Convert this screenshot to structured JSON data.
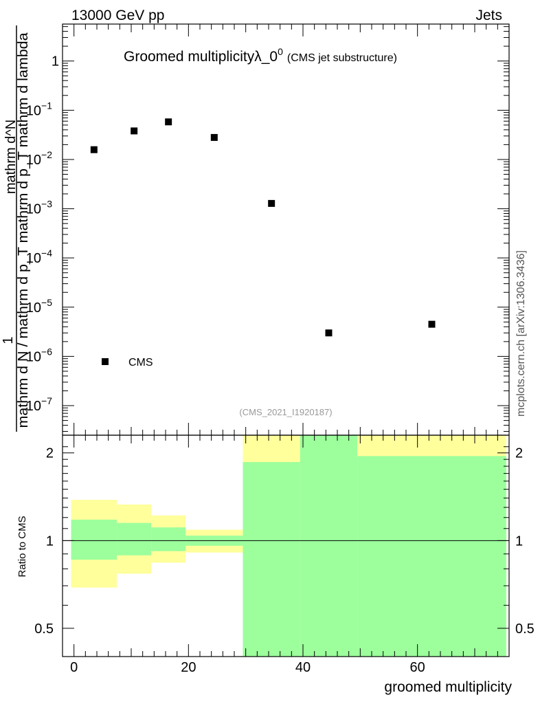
{
  "header": {
    "left": "13000 GeV pp",
    "right": "Jets"
  },
  "side_label": "mcplots.cern.ch [arXiv:1306.3436]",
  "chart_data": {
    "type": "scatter",
    "title": "Groomed multiplicityλ_0",
    "title_sup": "0",
    "subtitle": "(CMS jet substructure)",
    "analysis_id": "(CMS_2021_I1920187)",
    "xlabel": "groomed multiplicity",
    "ylabel_main_top": "mathrm d^N",
    "ylabel_main_bottom": "mathrm d N / mathrm d p_T mathrm d p_T mathrm d lambda",
    "ylabel_main_num": "1",
    "ylabel_ratio": "Ratio to CMS",
    "xlim": [
      -2,
      76
    ],
    "ylim_main_log10": [
      -7.6,
      0.75
    ],
    "ylim_ratio": [
      0.4,
      2.3
    ],
    "y_scale_main": "log",
    "y_scale_ratio": "log",
    "x_ticks": [
      "0",
      "20",
      "40",
      "60"
    ],
    "y_ticks_main": [
      {
        "base": "1",
        "exp": "",
        "log": 0
      },
      {
        "base": "10",
        "exp": "−1",
        "log": -1
      },
      {
        "base": "10",
        "exp": "−2",
        "log": -2
      },
      {
        "base": "10",
        "exp": "−3",
        "log": -3
      },
      {
        "base": "10",
        "exp": "−4",
        "log": -4
      },
      {
        "base": "10",
        "exp": "−5",
        "log": -5
      },
      {
        "base": "10",
        "exp": "−6",
        "log": -6
      },
      {
        "base": "10",
        "exp": "−7",
        "log": -7
      }
    ],
    "y_ticks_ratio": [
      {
        "label": "0.5",
        "value": 0.5
      },
      {
        "label": "1",
        "value": 1
      },
      {
        "label": "2",
        "value": 2
      }
    ],
    "legend": [
      {
        "name": "CMS",
        "marker": "square"
      }
    ],
    "legend_position": "bottom-left",
    "series": [
      {
        "name": "CMS",
        "x": [
          3.5,
          10.5,
          16.5,
          24.5,
          34.5,
          44.5,
          62.5
        ],
        "y": [
          0.0158,
          0.038,
          0.058,
          0.028,
          0.00128,
          3e-06,
          4.5e-06
        ]
      }
    ],
    "ratio_bands": [
      {
        "xlo": -0.5,
        "xhi": 7.5,
        "green_lo": 0.86,
        "green_hi": 1.18,
        "yellow_lo": 0.69,
        "yellow_hi": 1.38
      },
      {
        "xlo": 7.5,
        "xhi": 13.5,
        "green_lo": 0.89,
        "green_hi": 1.15,
        "yellow_lo": 0.77,
        "yellow_hi": 1.33
      },
      {
        "xlo": 13.5,
        "xhi": 19.5,
        "green_lo": 0.92,
        "green_hi": 1.11,
        "yellow_lo": 0.84,
        "yellow_hi": 1.22
      },
      {
        "xlo": 19.5,
        "xhi": 29.5,
        "green_lo": 0.96,
        "green_hi": 1.04,
        "yellow_lo": 0.91,
        "yellow_hi": 1.09
      },
      {
        "xlo": 29.5,
        "xhi": 39.5,
        "green_lo": 0.4,
        "green_hi": 1.86,
        "yellow_lo": 0.4,
        "yellow_hi": 2.3
      },
      {
        "xlo": 39.5,
        "xhi": 49.5,
        "green_lo": 0.4,
        "green_hi": 2.3,
        "yellow_lo": 0.4,
        "yellow_hi": 2.3
      },
      {
        "xlo": 49.5,
        "xhi": 75.5,
        "green_lo": 0.4,
        "green_hi": 1.95,
        "yellow_lo": 0.4,
        "yellow_hi": 2.3
      }
    ],
    "colors": {
      "green": "#9cff9c",
      "yellow": "#ffff9c",
      "marker": "#000000",
      "analysis_text": "#999999",
      "side_text": "#555555"
    }
  }
}
